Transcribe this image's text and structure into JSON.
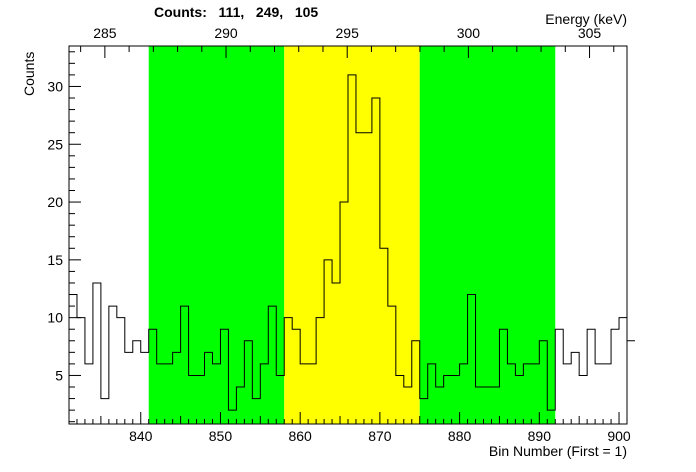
{
  "header": {
    "counts_label": "Counts:   111,   249,   105"
  },
  "chart_data": {
    "type": "histogram",
    "xlabel": "Bin Number (First = 1)",
    "ylabel": "Counts",
    "top_axis_label": "Energy (keV)",
    "xlim": [
      831,
      901
    ],
    "ylim": [
      0.8,
      33.5
    ],
    "x_ticks": [
      840,
      850,
      860,
      870,
      880,
      890,
      900
    ],
    "y_ticks": [
      5,
      10,
      15,
      20,
      25,
      30
    ],
    "energy_ticks": [
      285,
      290,
      295,
      300,
      305
    ],
    "energy_calibration": {
      "bin": [
        835.5,
        896.3
      ],
      "energy": [
        285,
        305
      ]
    },
    "bin_start": 831,
    "bin_width": 1,
    "values": [
      12,
      10,
      6,
      13,
      3,
      11,
      10,
      7,
      8,
      7,
      9,
      6,
      6,
      7,
      11,
      5,
      5,
      7,
      6,
      9,
      2,
      4,
      8,
      3,
      6,
      11,
      5,
      10,
      9,
      6,
      6,
      10,
      15,
      13,
      20,
      31,
      26,
      26,
      29,
      16,
      11,
      5,
      4,
      8,
      3,
      6,
      4,
      5,
      5,
      6,
      12,
      4,
      4,
      4,
      9,
      6,
      5,
      6,
      6,
      8,
      2,
      9,
      6,
      7,
      5,
      9,
      6,
      6,
      9,
      10,
      8
    ],
    "regions": [
      {
        "name": "background-left",
        "from": 841,
        "to": 858,
        "color": "#00ff00"
      },
      {
        "name": "peak",
        "from": 858,
        "to": 875,
        "color": "#ffff00"
      },
      {
        "name": "background-right",
        "from": 875,
        "to": 892,
        "color": "#00ff00"
      }
    ],
    "line_color": "#000000",
    "grid": false
  }
}
